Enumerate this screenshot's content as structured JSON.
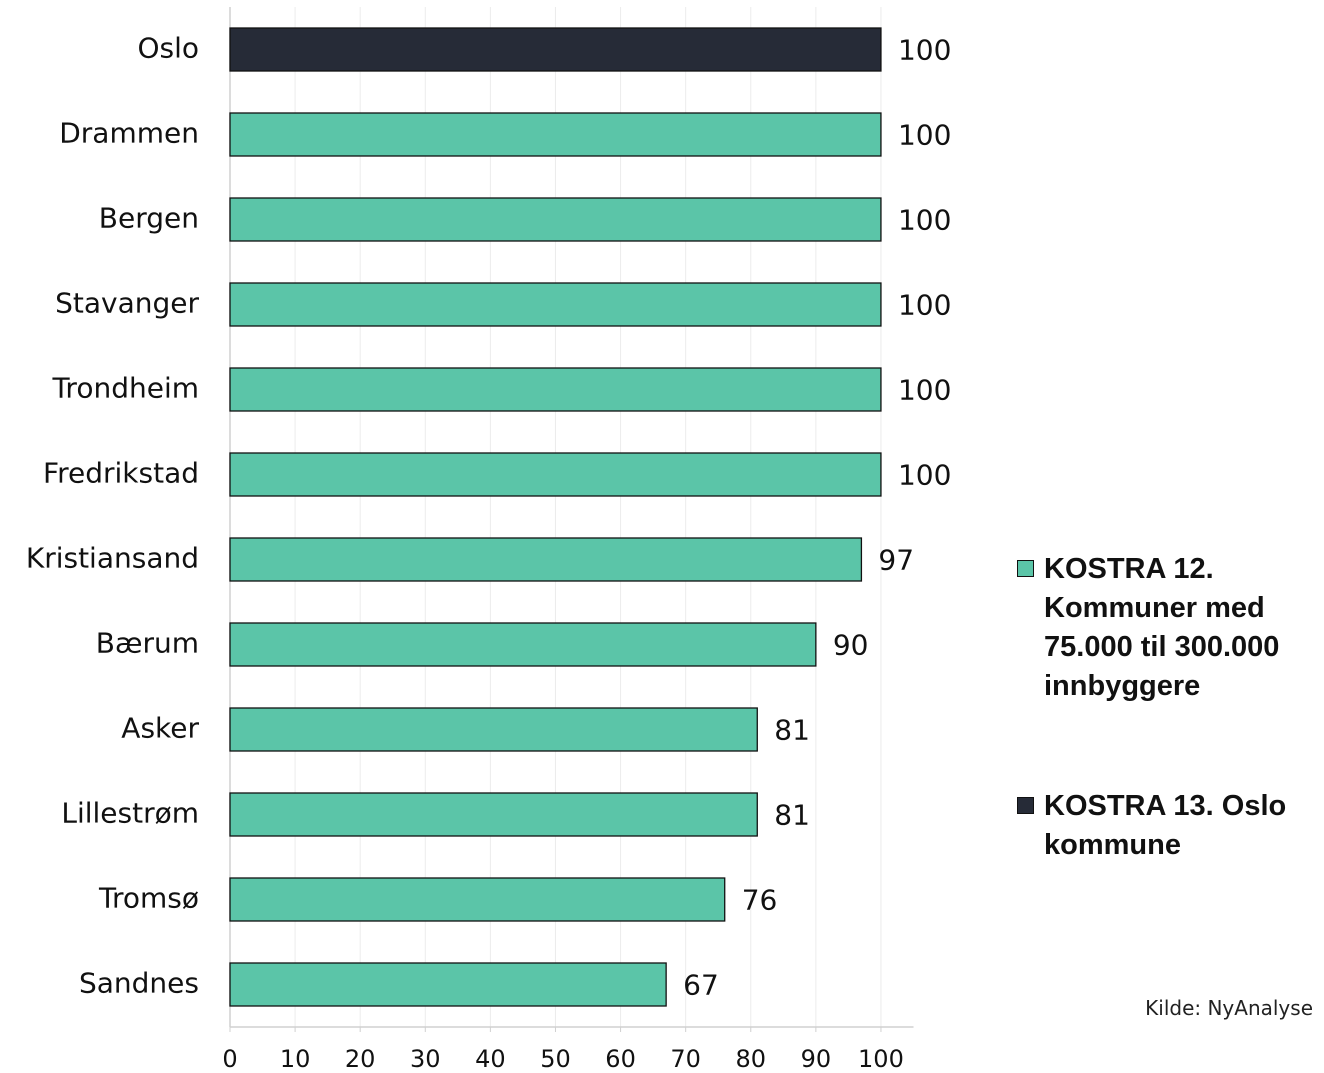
{
  "chart_data": {
    "type": "bar",
    "orientation": "horizontal",
    "categories": [
      "Oslo",
      "Drammen",
      "Bergen",
      "Stavanger",
      "Trondheim",
      "Fredrikstad",
      "Kristiansand",
      "Bærum",
      "Asker",
      "Lillestrøm",
      "Tromsø",
      "Sandnes"
    ],
    "series": [
      {
        "name": "KOSTRA 12. Kommuner med 75.000 til 300.000 innbyggere",
        "color": "#5bc5a8",
        "values": [
          null,
          100,
          100,
          100,
          100,
          100,
          97,
          90,
          81,
          81,
          76,
          67
        ]
      },
      {
        "name": "KOSTRA 13. Oslo kommune",
        "color": "#262b37",
        "values": [
          100,
          null,
          null,
          null,
          null,
          null,
          null,
          null,
          null,
          null,
          null,
          null
        ]
      }
    ],
    "xlim": [
      0,
      105
    ],
    "xticks": [
      0,
      10,
      20,
      30,
      40,
      50,
      60,
      70,
      80,
      90,
      100
    ],
    "grid": true,
    "legend": "right",
    "source": "Kilde: NyAnalyse"
  }
}
